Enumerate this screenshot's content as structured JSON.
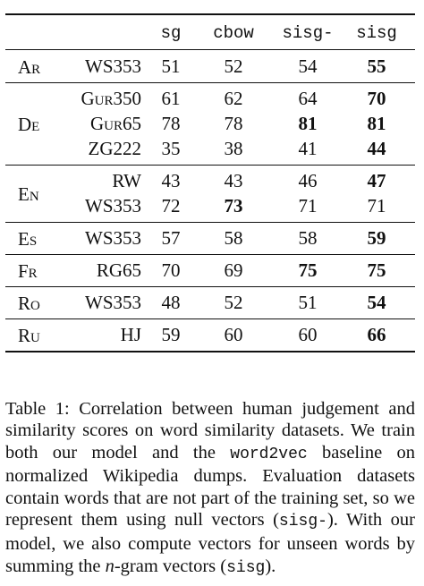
{
  "table": {
    "headers": [
      "sg",
      "cbow",
      "sisg-",
      "sisg"
    ],
    "groups": [
      {
        "lang": "Ar",
        "rows": [
          {
            "dataset": "WS353",
            "values": [
              "51",
              "52",
              "54",
              "55"
            ],
            "bold": [
              3
            ]
          }
        ]
      },
      {
        "lang": "De",
        "rows": [
          {
            "dataset": "Gur350",
            "values": [
              "61",
              "62",
              "64",
              "70"
            ],
            "bold": [
              3
            ]
          },
          {
            "dataset": "Gur65",
            "values": [
              "78",
              "78",
              "81",
              "81"
            ],
            "bold": [
              2,
              3
            ]
          },
          {
            "dataset": "ZG222",
            "values": [
              "35",
              "38",
              "41",
              "44"
            ],
            "bold": [
              3
            ]
          }
        ]
      },
      {
        "lang": "En",
        "rows": [
          {
            "dataset": "RW",
            "values": [
              "43",
              "43",
              "46",
              "47"
            ],
            "bold": [
              3
            ]
          },
          {
            "dataset": "WS353",
            "values": [
              "72",
              "73",
              "71",
              "71"
            ],
            "bold": [
              1
            ]
          }
        ]
      },
      {
        "lang": "Es",
        "rows": [
          {
            "dataset": "WS353",
            "values": [
              "57",
              "58",
              "58",
              "59"
            ],
            "bold": [
              3
            ]
          }
        ]
      },
      {
        "lang": "Fr",
        "rows": [
          {
            "dataset": "RG65",
            "values": [
              "70",
              "69",
              "75",
              "75"
            ],
            "bold": [
              2,
              3
            ]
          }
        ]
      },
      {
        "lang": "Ro",
        "rows": [
          {
            "dataset": "WS353",
            "values": [
              "48",
              "52",
              "51",
              "54"
            ],
            "bold": [
              3
            ]
          }
        ]
      },
      {
        "lang": "Ru",
        "rows": [
          {
            "dataset": "HJ",
            "values": [
              "59",
              "60",
              "60",
              "66"
            ],
            "bold": [
              3
            ]
          }
        ]
      }
    ]
  },
  "caption": {
    "part1": "Table 1: Correlation between human judgement and similarity scores on word similarity datasets.  We train both our model and the ",
    "code1": "word2vec",
    "part2": " baseline on normalized Wikipedia dumps.  Evaluation datasets contain words that are not part of the training set, so we represent them using null vectors (",
    "code2": "sisg-",
    "part3": "). With our model, we also compute vectors for unseen words by summing the ",
    "italic": "n",
    "part4": "-gram vectors (",
    "code3": "sisg",
    "part5": ")."
  }
}
